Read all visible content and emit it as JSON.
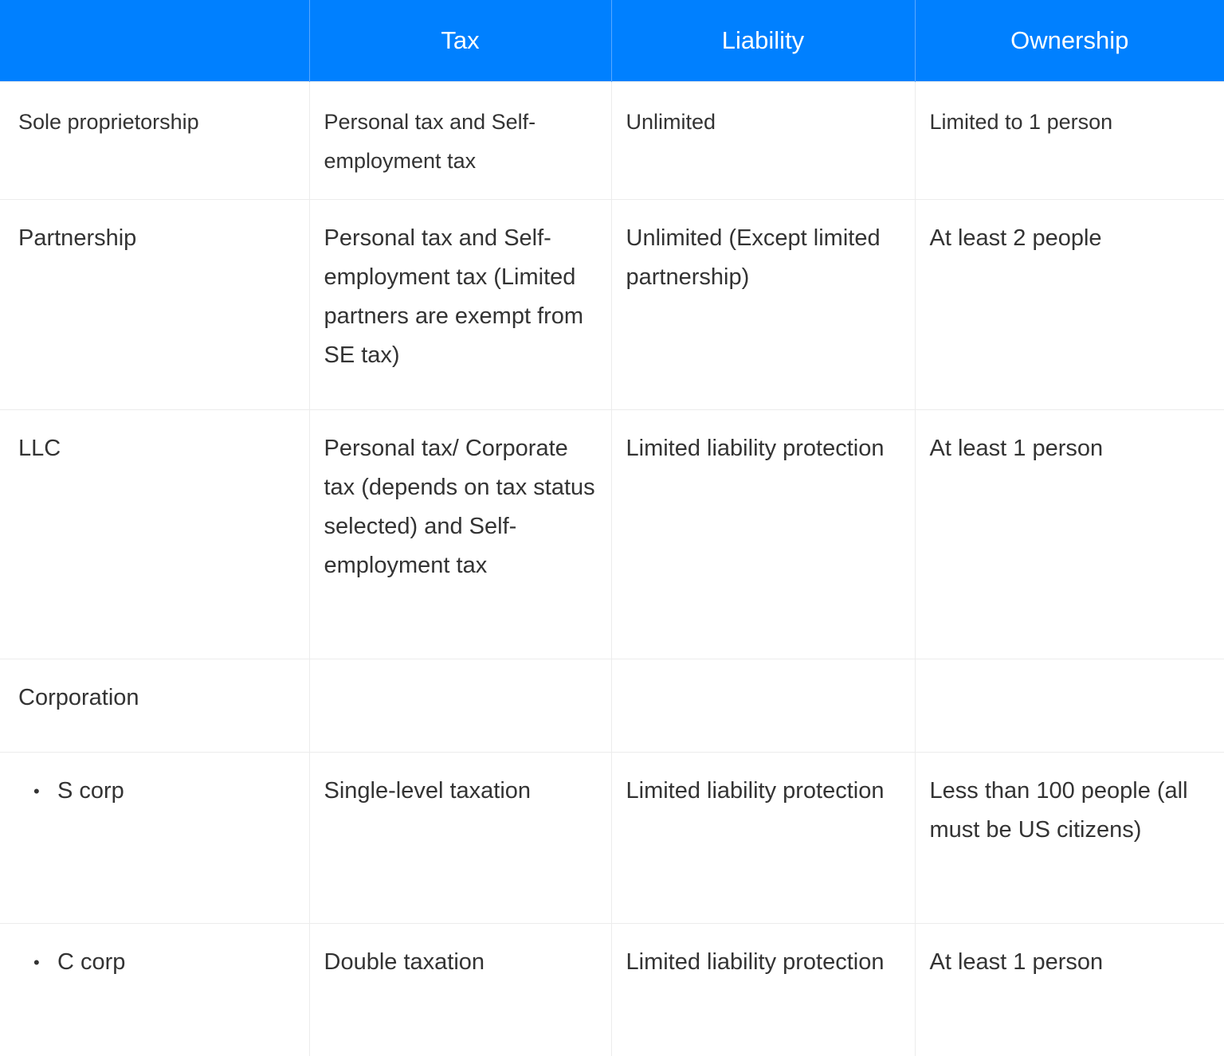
{
  "table": {
    "header": [
      "Tax",
      "Liability",
      "Ownership"
    ],
    "rows": [
      {
        "label": "Sole proprietorship",
        "cells": [
          "Personal tax and Self-employment tax",
          "Unlimited",
          "Limited to 1 person"
        ]
      },
      {
        "label": "Partnership",
        "cells": [
          "Personal tax and Self-employment tax (Limited partners are exempt from SE tax)",
          "Unlimited (Except limited partnership)",
          "At least 2 people"
        ]
      },
      {
        "label": "LLC",
        "cells": [
          "Personal tax/ Corporate tax (depends on tax status selected) and Self-employment tax",
          "Limited liability protection",
          "At least 1 person"
        ]
      },
      {
        "label": "Corporation",
        "cells": []
      },
      {
        "label": "S corp",
        "cells": [
          "Single-level taxation",
          "Limited liability protection",
          "Less than 100 people (all must be US citizens)"
        ]
      },
      {
        "label": "C corp",
        "cells": [
          "Double taxation",
          "Limited liability protection",
          "At least 1 person"
        ]
      }
    ]
  }
}
